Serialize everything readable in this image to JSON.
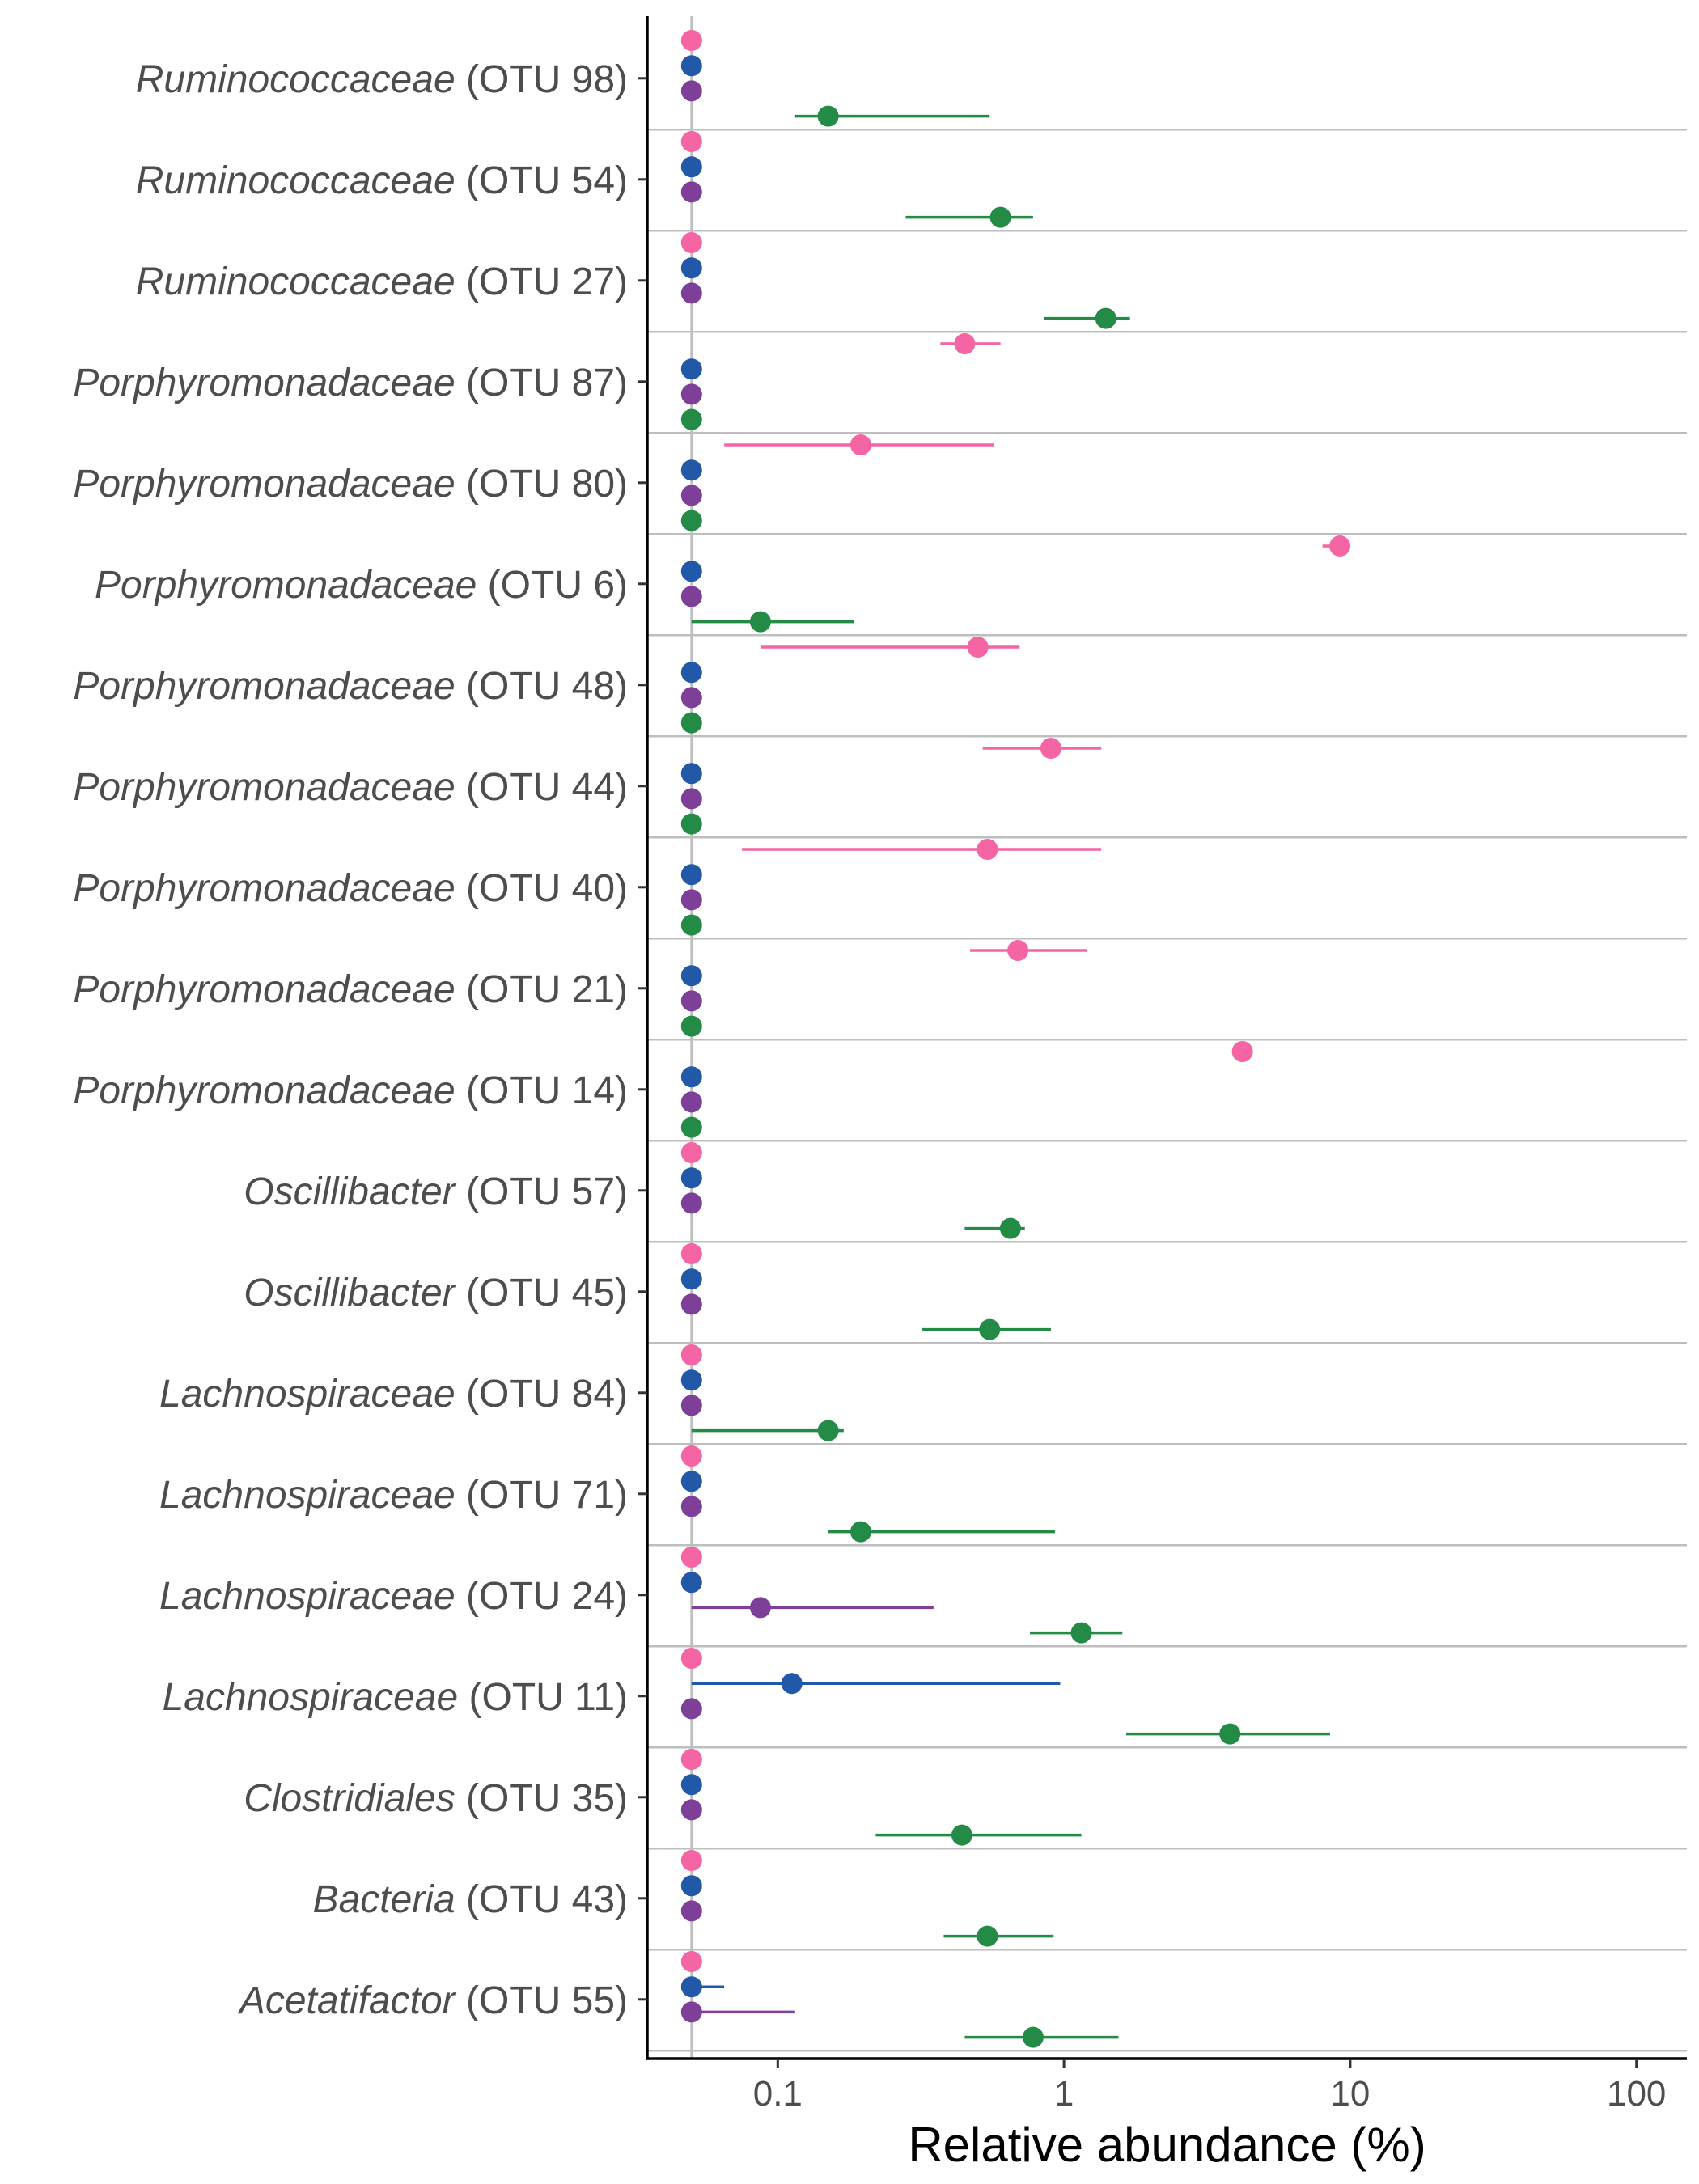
{
  "chart_data": {
    "type": "scatter",
    "subtype": "dot-and-errorbar (horizontal, grouped by category)",
    "title": "",
    "xlabel": "Relative abundance (%)",
    "ylabel": "",
    "x_scale": "log10",
    "xlim": [
      0.035,
      150
    ],
    "x_ticks": [
      {
        "value": 0.1,
        "label": "0.1"
      },
      {
        "value": 1,
        "label": "1"
      },
      {
        "value": 10,
        "label": "10"
      },
      {
        "value": 100,
        "label": "100"
      }
    ],
    "reference_line_x": 0.05,
    "colors": {
      "pink": "#F564A3",
      "blue": "#2158A8",
      "purple": "#7E3F98",
      "green": "#238B45",
      "axis": "#000000",
      "separator": "#bebebe",
      "reference": "#bebebe"
    },
    "series_order": [
      "pink",
      "blue",
      "purple",
      "green"
    ],
    "legend": "none",
    "categories": [
      {
        "genus": "Ruminococcaceae",
        "otu": " (OTU 98)",
        "points": [
          {
            "series": "pink",
            "x": 0.05
          },
          {
            "series": "blue",
            "x": 0.05
          },
          {
            "series": "purple",
            "x": 0.05
          },
          {
            "series": "green",
            "x": 0.15,
            "lo": 0.115,
            "hi": 0.55
          }
        ]
      },
      {
        "genus": "Ruminococcaceae",
        "otu": " (OTU 54)",
        "points": [
          {
            "series": "pink",
            "x": 0.05
          },
          {
            "series": "blue",
            "x": 0.05
          },
          {
            "series": "purple",
            "x": 0.05
          },
          {
            "series": "green",
            "x": 0.6,
            "lo": 0.28,
            "hi": 0.78
          }
        ]
      },
      {
        "genus": "Ruminococcaceae",
        "otu": " (OTU 27)",
        "points": [
          {
            "series": "pink",
            "x": 0.05
          },
          {
            "series": "blue",
            "x": 0.05
          },
          {
            "series": "purple",
            "x": 0.05
          },
          {
            "series": "green",
            "x": 1.4,
            "lo": 0.85,
            "hi": 1.7
          }
        ]
      },
      {
        "genus": "Porphyromonadaceae",
        "otu": " (OTU 87)",
        "points": [
          {
            "series": "pink",
            "x": 0.45,
            "lo": 0.37,
            "hi": 0.6
          },
          {
            "series": "blue",
            "x": 0.05
          },
          {
            "series": "purple",
            "x": 0.05
          },
          {
            "series": "green",
            "x": 0.05
          }
        ]
      },
      {
        "genus": "Porphyromonadaceae",
        "otu": " (OTU 80)",
        "points": [
          {
            "series": "pink",
            "x": 0.195,
            "lo": 0.065,
            "hi": 0.57
          },
          {
            "series": "blue",
            "x": 0.05
          },
          {
            "series": "purple",
            "x": 0.05
          },
          {
            "series": "green",
            "x": 0.05
          }
        ]
      },
      {
        "genus": "Porphyromonadaceae",
        "otu": " (OTU 6)",
        "points": [
          {
            "series": "pink",
            "x": 9.2,
            "lo": 8.0,
            "hi": 9.8
          },
          {
            "series": "blue",
            "x": 0.05
          },
          {
            "series": "purple",
            "x": 0.05
          },
          {
            "series": "green",
            "x": 0.087,
            "lo": 0.05,
            "hi": 0.185
          }
        ]
      },
      {
        "genus": "Porphyromonadaceae",
        "otu": " (OTU 48)",
        "points": [
          {
            "series": "pink",
            "x": 0.5,
            "lo": 0.087,
            "hi": 0.7
          },
          {
            "series": "blue",
            "x": 0.05
          },
          {
            "series": "purple",
            "x": 0.05
          },
          {
            "series": "green",
            "x": 0.05
          }
        ]
      },
      {
        "genus": "Porphyromonadaceae",
        "otu": " (OTU 44)",
        "points": [
          {
            "series": "pink",
            "x": 0.9,
            "lo": 0.52,
            "hi": 1.35
          },
          {
            "series": "blue",
            "x": 0.05
          },
          {
            "series": "purple",
            "x": 0.05
          },
          {
            "series": "green",
            "x": 0.05
          }
        ]
      },
      {
        "genus": "Porphyromonadaceae",
        "otu": " (OTU 40)",
        "points": [
          {
            "series": "pink",
            "x": 0.54,
            "lo": 0.075,
            "hi": 1.35
          },
          {
            "series": "blue",
            "x": 0.05
          },
          {
            "series": "purple",
            "x": 0.05
          },
          {
            "series": "green",
            "x": 0.05
          }
        ]
      },
      {
        "genus": "Porphyromonadaceae",
        "otu": " (OTU 21)",
        "points": [
          {
            "series": "pink",
            "x": 0.69,
            "lo": 0.47,
            "hi": 1.2
          },
          {
            "series": "blue",
            "x": 0.05
          },
          {
            "series": "purple",
            "x": 0.05
          },
          {
            "series": "green",
            "x": 0.05
          }
        ]
      },
      {
        "genus": "Porphyromonadaceae",
        "otu": " (OTU 14)",
        "points": [
          {
            "series": "pink",
            "x": 4.2
          },
          {
            "series": "blue",
            "x": 0.05
          },
          {
            "series": "purple",
            "x": 0.05
          },
          {
            "series": "green",
            "x": 0.05
          }
        ]
      },
      {
        "genus": "Oscillibacter",
        "otu": " (OTU 57)",
        "points": [
          {
            "series": "pink",
            "x": 0.05
          },
          {
            "series": "blue",
            "x": 0.05
          },
          {
            "series": "purple",
            "x": 0.05
          },
          {
            "series": "green",
            "x": 0.65,
            "lo": 0.45,
            "hi": 0.73
          }
        ]
      },
      {
        "genus": "Oscillibacter",
        "otu": " (OTU 45)",
        "points": [
          {
            "series": "pink",
            "x": 0.05
          },
          {
            "series": "blue",
            "x": 0.05
          },
          {
            "series": "purple",
            "x": 0.05
          },
          {
            "series": "green",
            "x": 0.55,
            "lo": 0.32,
            "hi": 0.9
          }
        ]
      },
      {
        "genus": "Lachnospiraceae",
        "otu": " (OTU 84)",
        "points": [
          {
            "series": "pink",
            "x": 0.05
          },
          {
            "series": "blue",
            "x": 0.05
          },
          {
            "series": "purple",
            "x": 0.05
          },
          {
            "series": "green",
            "x": 0.15,
            "lo": 0.05,
            "hi": 0.17
          }
        ]
      },
      {
        "genus": "Lachnospiraceae",
        "otu": " (OTU 71)",
        "points": [
          {
            "series": "pink",
            "x": 0.05
          },
          {
            "series": "blue",
            "x": 0.05
          },
          {
            "series": "purple",
            "x": 0.05
          },
          {
            "series": "green",
            "x": 0.195,
            "lo": 0.15,
            "hi": 0.93
          }
        ]
      },
      {
        "genus": "Lachnospiraceae",
        "otu": " (OTU 24)",
        "points": [
          {
            "series": "pink",
            "x": 0.05
          },
          {
            "series": "blue",
            "x": 0.05
          },
          {
            "series": "purple",
            "x": 0.087,
            "lo": 0.05,
            "hi": 0.35
          },
          {
            "series": "green",
            "x": 1.15,
            "lo": 0.76,
            "hi": 1.6
          }
        ]
      },
      {
        "genus": "Lachnospiraceae",
        "otu": " (OTU 11)",
        "points": [
          {
            "series": "pink",
            "x": 0.05
          },
          {
            "series": "blue",
            "x": 0.112,
            "lo": 0.05,
            "hi": 0.97
          },
          {
            "series": "purple",
            "x": 0.05
          },
          {
            "series": "green",
            "x": 3.8,
            "lo": 1.65,
            "hi": 8.5
          }
        ]
      },
      {
        "genus": "Clostridiales",
        "otu": " (OTU 35)",
        "points": [
          {
            "series": "pink",
            "x": 0.05
          },
          {
            "series": "blue",
            "x": 0.05
          },
          {
            "series": "purple",
            "x": 0.05
          },
          {
            "series": "green",
            "x": 0.44,
            "lo": 0.22,
            "hi": 1.15
          }
        ]
      },
      {
        "genus": "Bacteria",
        "otu": " (OTU 43)",
        "points": [
          {
            "series": "pink",
            "x": 0.05
          },
          {
            "series": "blue",
            "x": 0.05
          },
          {
            "series": "purple",
            "x": 0.05
          },
          {
            "series": "green",
            "x": 0.54,
            "lo": 0.38,
            "hi": 0.92
          }
        ]
      },
      {
        "genus": "Acetatifactor",
        "otu": " (OTU 55)",
        "points": [
          {
            "series": "pink",
            "x": 0.05
          },
          {
            "series": "blue",
            "x": 0.05,
            "lo": 0.05,
            "hi": 0.065
          },
          {
            "series": "purple",
            "x": 0.05,
            "lo": 0.05,
            "hi": 0.115
          },
          {
            "series": "green",
            "x": 0.78,
            "lo": 0.45,
            "hi": 1.55
          }
        ]
      }
    ]
  }
}
